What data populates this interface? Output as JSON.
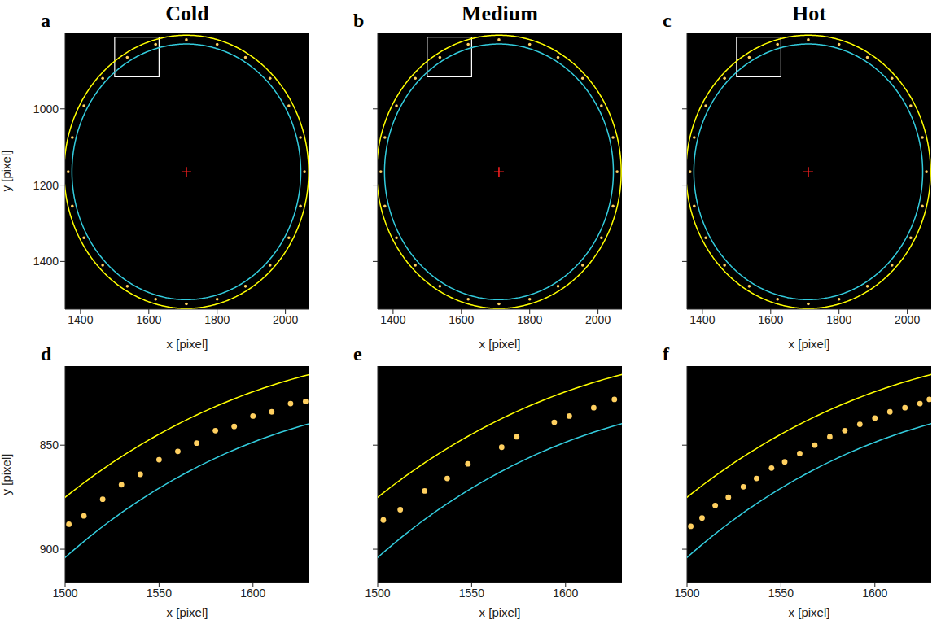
{
  "chart_data": [
    {
      "type": "scatter",
      "title": "Cold",
      "panel_label": "a",
      "x_label": "x [pixel]",
      "y_label": "y [pixel]",
      "xlim": [
        1355,
        2070
      ],
      "xticks": [
        1400,
        1600,
        1800,
        2000
      ],
      "ylim": [
        1525,
        800
      ],
      "yticks": [
        1000,
        1200,
        1400
      ],
      "circles": [
        {
          "center": [
            1710,
            1165
          ],
          "radius": 358,
          "color": "#ffff00"
        },
        {
          "center": [
            1710,
            1165
          ],
          "radius": 335,
          "color": "#33ccdd"
        }
      ],
      "center_marker": {
        "x": 1710,
        "y": 1165,
        "color": "#ff2020",
        "marker": "cross"
      },
      "box": {
        "x": [
          1500,
          1630
        ],
        "y": [
          812,
          916
        ],
        "color": "#ffffff"
      },
      "speckles": {
        "color": "#ffd060",
        "x": [
          2056,
          2044,
          2010,
          1955,
          1883,
          1800,
          1710,
          1620,
          1537,
          1465,
          1410,
          1376,
          1364,
          1376,
          1410,
          1465,
          1537,
          1620,
          1710,
          1800,
          1883,
          1955,
          2010,
          2044
        ],
        "y": [
          1165,
          1075,
          992,
          920,
          865,
          831,
          819,
          831,
          865,
          920,
          992,
          1075,
          1165,
          1255,
          1338,
          1410,
          1465,
          1499,
          1511,
          1499,
          1465,
          1410,
          1338,
          1255
        ]
      }
    },
    {
      "type": "scatter",
      "title": "Medium",
      "panel_label": "b",
      "x_label": "x [pixel]",
      "tick_labels": "x",
      "xlim": [
        1355,
        2070
      ],
      "xticks": [
        1400,
        1600,
        1800,
        2000
      ],
      "ylim": [
        1525,
        800
      ],
      "yticks": [
        1000,
        1200,
        1400
      ],
      "circles": [
        {
          "center": [
            1710,
            1165
          ],
          "radius": 358,
          "color": "#ffff00"
        },
        {
          "center": [
            1710,
            1165
          ],
          "radius": 335,
          "color": "#33ccdd"
        }
      ],
      "center_marker": {
        "x": 1710,
        "y": 1165,
        "color": "#ff2020",
        "marker": "cross"
      },
      "box": {
        "x": [
          1500,
          1630
        ],
        "y": [
          812,
          916
        ],
        "color": "#ffffff"
      },
      "speckles": {
        "color": "#ffd060",
        "x": [
          2056,
          2044,
          2010,
          1955,
          1883,
          1800,
          1710,
          1620,
          1537,
          1465,
          1410,
          1376,
          1364,
          1376,
          1410,
          1465,
          1537,
          1620,
          1710,
          1800,
          1883,
          1955,
          2010,
          2044
        ],
        "y": [
          1165,
          1075,
          992,
          920,
          865,
          831,
          819,
          831,
          865,
          920,
          992,
          1075,
          1165,
          1255,
          1338,
          1410,
          1465,
          1499,
          1511,
          1499,
          1465,
          1410,
          1338,
          1255
        ]
      }
    },
    {
      "type": "scatter",
      "title": "Hot",
      "panel_label": "c",
      "x_label": "x [pixel]",
      "tick_labels": "x",
      "xlim": [
        1355,
        2070
      ],
      "xticks": [
        1400,
        1600,
        1800,
        2000
      ],
      "ylim": [
        1525,
        800
      ],
      "yticks": [
        1000,
        1200,
        1400
      ],
      "circles": [
        {
          "center": [
            1710,
            1165
          ],
          "radius": 358,
          "color": "#ffff00"
        },
        {
          "center": [
            1710,
            1165
          ],
          "radius": 335,
          "color": "#33ccdd"
        }
      ],
      "center_marker": {
        "x": 1710,
        "y": 1165,
        "color": "#ff2020",
        "marker": "cross"
      },
      "box": {
        "x": [
          1500,
          1630
        ],
        "y": [
          812,
          916
        ],
        "color": "#ffffff"
      },
      "speckles": {
        "color": "#ffd060",
        "x": [
          2056,
          2044,
          2010,
          1955,
          1883,
          1800,
          1710,
          1620,
          1537,
          1465,
          1410,
          1376,
          1364,
          1376,
          1410,
          1465,
          1537,
          1620,
          1710,
          1800,
          1883,
          1955,
          2010,
          2044
        ],
        "y": [
          1165,
          1075,
          992,
          920,
          865,
          831,
          819,
          831,
          865,
          920,
          992,
          1075,
          1165,
          1255,
          1338,
          1410,
          1465,
          1499,
          1511,
          1499,
          1465,
          1410,
          1338,
          1255
        ]
      }
    },
    {
      "type": "scatter",
      "panel_label": "d",
      "x_label": "x [pixel]",
      "y_label": "y [pixel]",
      "xlim": [
        1500,
        1630
      ],
      "xticks": [
        1500,
        1550,
        1600
      ],
      "ylim": [
        916,
        812
      ],
      "yticks": [
        850,
        900
      ],
      "circles": [
        {
          "center": [
            1710,
            1165
          ],
          "radius": 358,
          "color": "#ffff00"
        },
        {
          "center": [
            1710,
            1165
          ],
          "radius": 335,
          "color": "#33ccdd"
        }
      ],
      "speckles": {
        "color": "#ffd060",
        "x": [
          1502,
          1510,
          1520,
          1530,
          1540,
          1550,
          1560,
          1570,
          1580,
          1590,
          1600,
          1610,
          1620,
          1628
        ],
        "y": [
          888,
          884,
          876,
          869,
          864,
          857,
          853,
          849,
          843,
          841,
          836,
          834,
          830,
          829
        ]
      }
    },
    {
      "type": "scatter",
      "panel_label": "e",
      "x_label": "x [pixel]",
      "tick_labels": "x",
      "xlim": [
        1500,
        1630
      ],
      "xticks": [
        1500,
        1550,
        1600
      ],
      "ylim": [
        916,
        812
      ],
      "yticks": [
        850,
        900
      ],
      "circles": [
        {
          "center": [
            1710,
            1165
          ],
          "radius": 358,
          "color": "#ffff00"
        },
        {
          "center": [
            1710,
            1165
          ],
          "radius": 335,
          "color": "#33ccdd"
        }
      ],
      "speckles": {
        "color": "#ffd060",
        "x": [
          1503,
          1512,
          1525,
          1537,
          1548,
          1566,
          1574,
          1594,
          1602,
          1615,
          1626
        ],
        "y": [
          886,
          881,
          872,
          866,
          859,
          851,
          846,
          839,
          836,
          832,
          828
        ]
      }
    },
    {
      "type": "scatter",
      "panel_label": "f",
      "x_label": "x [pixel]",
      "tick_labels": "x",
      "xlim": [
        1500,
        1630
      ],
      "xticks": [
        1500,
        1550,
        1600
      ],
      "ylim": [
        916,
        812
      ],
      "yticks": [
        850,
        900
      ],
      "circles": [
        {
          "center": [
            1710,
            1165
          ],
          "radius": 358,
          "color": "#ffff00"
        },
        {
          "center": [
            1710,
            1165
          ],
          "radius": 335,
          "color": "#33ccdd"
        }
      ],
      "speckles": {
        "color": "#ffd060",
        "x": [
          1502,
          1508,
          1515,
          1522,
          1530,
          1537,
          1545,
          1552,
          1560,
          1568,
          1576,
          1584,
          1592,
          1600,
          1608,
          1616,
          1624,
          1629
        ],
        "y": [
          889,
          885,
          879,
          875,
          870,
          866,
          861,
          858,
          854,
          850,
          846,
          843,
          840,
          837,
          834,
          832,
          830,
          828
        ]
      }
    }
  ]
}
